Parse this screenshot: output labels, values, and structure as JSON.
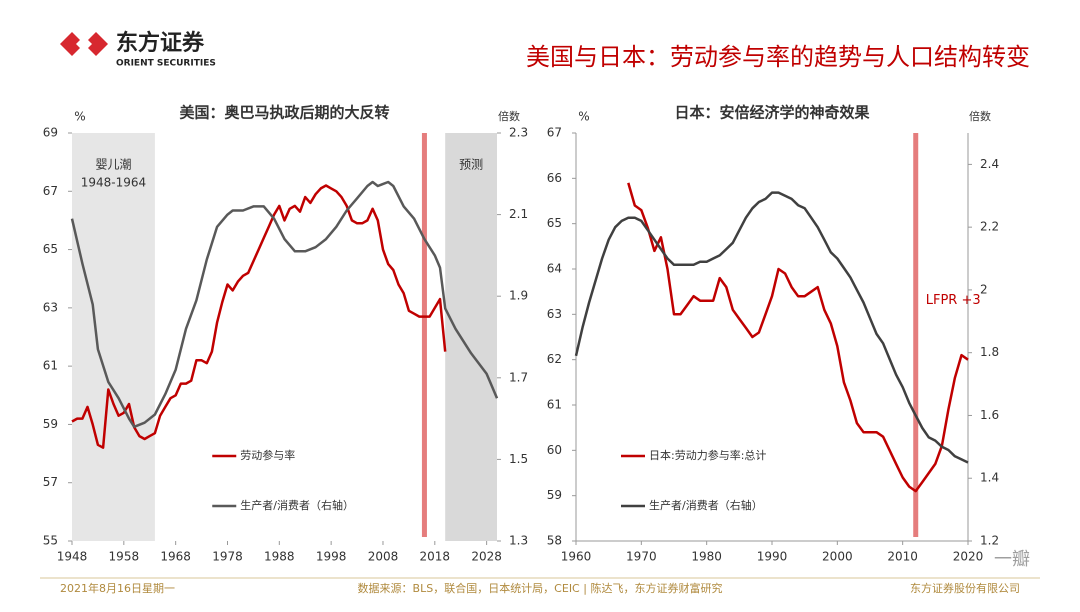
{
  "header": {
    "company": "东方证券",
    "company_en": "ORIENT SECURITIES",
    "title": "美国与日本：劳动参与率的趋势与人口结构转变"
  },
  "footer": {
    "date": "2021年8月16日星期一",
    "source": "数据来源：BLS，联合国，日本统计局，CEIC | 陈达飞，东方证券财富研究",
    "org": "东方证券股份有限公司",
    "watermark": "一瓣"
  },
  "chart_data": [
    {
      "type": "line",
      "title": "美国：奥巴马执政后期的大反转",
      "ylabel": "%",
      "y2label": "倍数",
      "xlim": [
        1948,
        2030
      ],
      "xticks": [
        1948,
        1958,
        1968,
        1978,
        1988,
        1998,
        2008,
        2018,
        2028
      ],
      "ylim": [
        55,
        69
      ],
      "yticks": [
        55,
        57,
        59,
        61,
        63,
        65,
        67,
        69
      ],
      "y2lim": [
        1.3,
        2.3
      ],
      "y2ticks": [
        1.3,
        1.5,
        1.7,
        1.9,
        2.1,
        2.3
      ],
      "legend": "lower center",
      "grid": false,
      "shaded_spans": [
        {
          "start": 1948,
          "end": 1964,
          "label": [
            "婴儿潮",
            "1948-1964"
          ],
          "color": "#e6e6e6"
        },
        {
          "start": 2020,
          "end": 2030,
          "label": [
            "预测"
          ],
          "color": "#d9d9d9"
        }
      ],
      "vline": {
        "value": 2016,
        "color": "#e06666"
      },
      "series": [
        {
          "name": "劳动参与率",
          "color": "#c00000",
          "axis": "y",
          "x": [
            1948,
            1949,
            1950,
            1951,
            1952,
            1953,
            1954,
            1955,
            1956,
            1957,
            1958,
            1959,
            1960,
            1961,
            1962,
            1963,
            1964,
            1965,
            1966,
            1967,
            1968,
            1969,
            1970,
            1971,
            1972,
            1973,
            1974,
            1975,
            1976,
            1977,
            1978,
            1979,
            1980,
            1981,
            1982,
            1983,
            1984,
            1985,
            1986,
            1987,
            1988,
            1989,
            1990,
            1991,
            1992,
            1993,
            1994,
            1995,
            1996,
            1997,
            1998,
            1999,
            2000,
            2001,
            2002,
            2003,
            2004,
            2005,
            2006,
            2007,
            2008,
            2009,
            2010,
            2011,
            2012,
            2013,
            2014,
            2015,
            2016,
            2017,
            2018,
            2019,
            2020
          ],
          "values": [
            59.1,
            59.2,
            59.2,
            59.6,
            59.0,
            58.3,
            58.2,
            60.2,
            59.7,
            59.3,
            59.4,
            59.7,
            58.9,
            58.6,
            58.5,
            58.6,
            58.7,
            59.3,
            59.6,
            59.9,
            60.0,
            60.4,
            60.4,
            60.5,
            61.2,
            61.2,
            61.1,
            61.5,
            62.5,
            63.2,
            63.8,
            63.6,
            63.9,
            64.1,
            64.2,
            64.6,
            65.0,
            65.4,
            65.8,
            66.2,
            66.5,
            66.0,
            66.4,
            66.5,
            66.3,
            66.8,
            66.6,
            66.9,
            67.1,
            67.2,
            67.1,
            67.0,
            66.8,
            66.5,
            66.0,
            65.9,
            65.9,
            66.0,
            66.4,
            66.0,
            65.0,
            64.5,
            64.3,
            63.8,
            63.5,
            62.9,
            62.8,
            62.7,
            62.7,
            62.7,
            63.0,
            63.3,
            61.5
          ]
        },
        {
          "name": "生产者/消费者（右轴）",
          "color": "#595959",
          "axis": "y2",
          "x": [
            1948,
            1950,
            1952,
            1953,
            1955,
            1957,
            1959,
            1960,
            1962,
            1964,
            1966,
            1968,
            1970,
            1972,
            1974,
            1976,
            1978,
            1979,
            1981,
            1983,
            1985,
            1987,
            1989,
            1991,
            1993,
            1995,
            1997,
            1999,
            2001,
            2003,
            2005,
            2006,
            2007,
            2009,
            2010,
            2012,
            2014,
            2016,
            2018,
            2019,
            2020,
            2022,
            2025,
            2028,
            2030
          ],
          "values": [
            2.09,
            1.98,
            1.88,
            1.77,
            1.69,
            1.65,
            1.6,
            1.58,
            1.59,
            1.61,
            1.66,
            1.72,
            1.82,
            1.89,
            1.99,
            2.07,
            2.1,
            2.11,
            2.11,
            2.12,
            2.12,
            2.09,
            2.04,
            2.01,
            2.01,
            2.02,
            2.04,
            2.07,
            2.11,
            2.14,
            2.17,
            2.18,
            2.17,
            2.18,
            2.17,
            2.12,
            2.09,
            2.04,
            2.0,
            1.97,
            1.87,
            1.82,
            1.76,
            1.71,
            1.65
          ]
        }
      ]
    },
    {
      "type": "line",
      "title": "日本：安倍经济学的神奇效果",
      "ylabel": "%",
      "y2label": "倍数",
      "xlim": [
        1960,
        2020
      ],
      "xticks": [
        1960,
        1970,
        1980,
        1990,
        2000,
        2010,
        2020
      ],
      "ylim": [
        58,
        67
      ],
      "yticks": [
        58,
        59,
        60,
        61,
        62,
        63,
        64,
        65,
        66,
        67
      ],
      "y2lim": [
        1.2,
        2.5
      ],
      "y2ticks": [
        1.2,
        1.4,
        1.6,
        1.8,
        2.0,
        2.2,
        2.4
      ],
      "legend": "lower left",
      "grid": false,
      "vline": {
        "value": 2012,
        "color": "#e06666"
      },
      "annotation": "LFPR +3",
      "series": [
        {
          "name": "日本:劳动力参与率:总计",
          "color": "#c00000",
          "axis": "y",
          "x": [
            1968,
            1969,
            1970,
            1971,
            1972,
            1973,
            1974,
            1975,
            1976,
            1977,
            1978,
            1979,
            1980,
            1981,
            1982,
            1983,
            1984,
            1985,
            1986,
            1987,
            1988,
            1989,
            1990,
            1991,
            1992,
            1993,
            1994,
            1995,
            1996,
            1997,
            1998,
            1999,
            2000,
            2001,
            2002,
            2003,
            2004,
            2005,
            2006,
            2007,
            2008,
            2009,
            2010,
            2011,
            2012,
            2013,
            2014,
            2015,
            2016,
            2017,
            2018,
            2019,
            2020
          ],
          "values": [
            65.9,
            65.4,
            65.3,
            64.9,
            64.4,
            64.7,
            64.0,
            63.0,
            63.0,
            63.2,
            63.4,
            63.3,
            63.3,
            63.3,
            63.8,
            63.6,
            63.1,
            62.9,
            62.7,
            62.5,
            62.6,
            63.0,
            63.4,
            64.0,
            63.9,
            63.6,
            63.4,
            63.4,
            63.5,
            63.6,
            63.1,
            62.8,
            62.3,
            61.5,
            61.1,
            60.6,
            60.4,
            60.4,
            60.4,
            60.3,
            60.0,
            59.7,
            59.4,
            59.2,
            59.1,
            59.3,
            59.5,
            59.7,
            60.1,
            60.9,
            61.6,
            62.1,
            62.0
          ]
        },
        {
          "name": "生产者/消费者（右轴）",
          "color": "#404040",
          "axis": "y2",
          "x": [
            1960,
            1961,
            1962,
            1963,
            1964,
            1965,
            1966,
            1967,
            1968,
            1969,
            1970,
            1971,
            1972,
            1973,
            1974,
            1975,
            1976,
            1977,
            1978,
            1979,
            1980,
            1981,
            1982,
            1983,
            1984,
            1985,
            1986,
            1987,
            1988,
            1989,
            1990,
            1991,
            1992,
            1993,
            1994,
            1995,
            1996,
            1997,
            1998,
            1999,
            2000,
            2001,
            2002,
            2003,
            2004,
            2005,
            2006,
            2007,
            2008,
            2009,
            2010,
            2011,
            2012,
            2013,
            2014,
            2015,
            2016,
            2017,
            2018,
            2019,
            2020
          ],
          "values": [
            1.79,
            1.88,
            1.96,
            2.03,
            2.1,
            2.16,
            2.2,
            2.22,
            2.23,
            2.23,
            2.22,
            2.19,
            2.16,
            2.13,
            2.1,
            2.08,
            2.08,
            2.08,
            2.08,
            2.09,
            2.09,
            2.1,
            2.11,
            2.13,
            2.15,
            2.19,
            2.23,
            2.26,
            2.28,
            2.29,
            2.31,
            2.31,
            2.3,
            2.29,
            2.27,
            2.26,
            2.23,
            2.2,
            2.16,
            2.12,
            2.1,
            2.07,
            2.04,
            2.0,
            1.96,
            1.91,
            1.86,
            1.83,
            1.78,
            1.73,
            1.69,
            1.64,
            1.6,
            1.56,
            1.53,
            1.52,
            1.5,
            1.49,
            1.47,
            1.46,
            1.45
          ]
        }
      ]
    }
  ]
}
